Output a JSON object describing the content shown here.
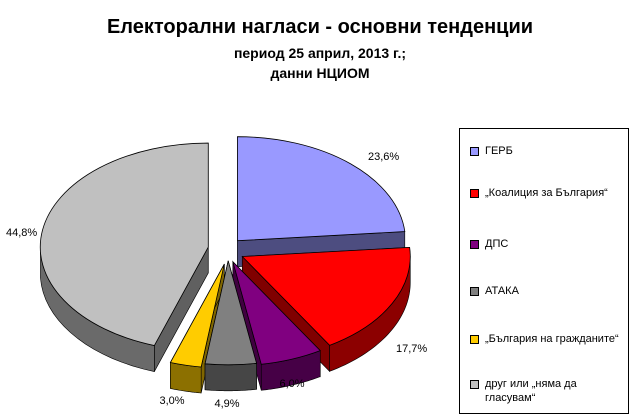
{
  "header": {
    "title": "Електорални нагласи - основни тенденции",
    "subtitle_line1": "период 25 април, 2013 г.;",
    "subtitle_line2": "данни НЦИОМ"
  },
  "chart_data": {
    "type": "pie",
    "style": "3d-exploded",
    "title": "Електорални нагласи - основни тенденции",
    "legend_position": "right",
    "slices": [
      {
        "name": "ГЕРБ",
        "value": 23.6,
        "label": "23,6%",
        "color": "#9999ff"
      },
      {
        "name": "„Коалиция за България“",
        "value": 17.7,
        "label": "17,7%",
        "color": "#ff0000"
      },
      {
        "name": "ДПС",
        "value": 6.0,
        "label": "6,0%",
        "color": "#800080"
      },
      {
        "name": "АТАКА",
        "value": 4.9,
        "label": "4,9%",
        "color": "#808080"
      },
      {
        "name": "„България на гражданите“",
        "value": 3.0,
        "label": "3,0%",
        "color": "#ffcc00"
      },
      {
        "name": "друг или „няма да гласувам“",
        "value": 44.8,
        "label": "44,8%",
        "color": "#c0c0c0"
      }
    ]
  },
  "legend": {
    "items": [
      {
        "label": "ГЕРБ",
        "color": "#9999ff"
      },
      {
        "label": "„Коалиция за България“",
        "color": "#ff0000"
      },
      {
        "label": "ДПС",
        "color": "#800080"
      },
      {
        "label": "АТАКА",
        "color": "#808080"
      },
      {
        "label": "„България на гражданите“",
        "color": "#ffcc00"
      },
      {
        "label": "друг или „няма да",
        "label2": "гласувам“",
        "color": "#c0c0c0"
      }
    ]
  }
}
